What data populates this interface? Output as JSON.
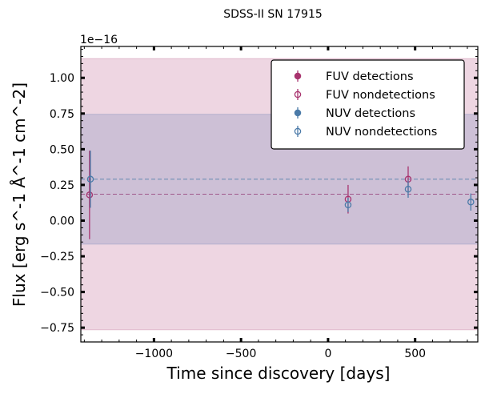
{
  "chart_data": {
    "type": "scatter",
    "title": "SDSS-II SN 17915",
    "xlabel": "Time since discovery [days]",
    "ylabel": "Flux [erg s^-1 Å^-1 cm^-2]",
    "y_offset_label": "1e−16",
    "xlim": [
      -1420,
      860
    ],
    "ylim": [
      -0.85,
      1.22
    ],
    "y_scale_factor": 1e-16,
    "x_ticks": [
      -1000,
      -500,
      0,
      500
    ],
    "x_tick_labels": [
      "−1000",
      "−500",
      "0",
      "500"
    ],
    "y_ticks": [
      -0.75,
      -0.5,
      -0.25,
      0.0,
      0.25,
      0.5,
      0.75,
      1.0
    ],
    "y_tick_labels": [
      "−0.75",
      "−0.50",
      "−0.25",
      "0.00",
      "0.25",
      "0.50",
      "0.75",
      "1.00"
    ],
    "legend_position": "top-right",
    "grid": false,
    "colors": {
      "fuv": "#a8336e",
      "nuv": "#4a7aa8",
      "fuv_band": "#a8336e",
      "nuv_band": "#4a6aa8"
    },
    "bands": [
      {
        "series": "FUV",
        "mean": 0.185,
        "low": -0.765,
        "high": 1.135
      },
      {
        "series": "NUV",
        "mean": 0.29,
        "low": -0.165,
        "high": 0.745
      }
    ],
    "series": [
      {
        "name": "FUV detections",
        "band": "FUV",
        "marker": "filled",
        "points": []
      },
      {
        "name": "FUV nondetections",
        "band": "FUV",
        "marker": "open",
        "points": [
          {
            "x": -1370,
            "y": 0.18,
            "err": 0.31
          },
          {
            "x": 115,
            "y": 0.15,
            "err": 0.1
          },
          {
            "x": 460,
            "y": 0.29,
            "err": 0.09
          }
        ]
      },
      {
        "name": "NUV detections",
        "band": "NUV",
        "marker": "filled",
        "points": []
      },
      {
        "name": "NUV nondetections",
        "band": "NUV",
        "marker": "open",
        "points": [
          {
            "x": -1365,
            "y": 0.29,
            "err": 0.2
          },
          {
            "x": 115,
            "y": 0.11,
            "err": 0.05
          },
          {
            "x": 460,
            "y": 0.22,
            "err": 0.06
          },
          {
            "x": 820,
            "y": 0.13,
            "err": 0.06
          }
        ]
      }
    ]
  }
}
